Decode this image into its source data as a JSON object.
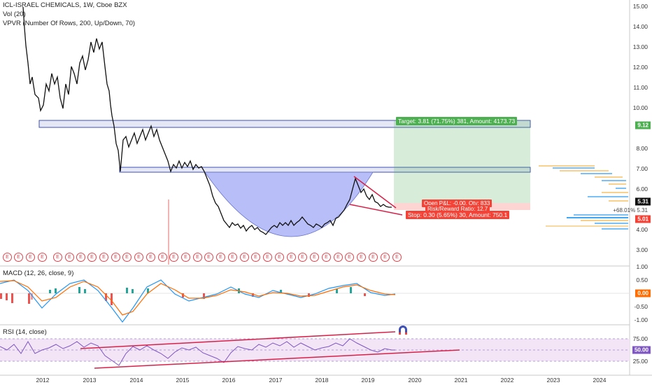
{
  "header": {
    "symbol_line": "ICL-ISRAEL CHEMICALS, 1W, Cboe BZX",
    "volume_line": "Vol (20)",
    "vpvr_line": "VPVR (Number Of Rows, 200, Up/Down, 70)",
    "macd_line": "MACD (12, 26, close, 9)",
    "rsi_line": "RSI (14, close)"
  },
  "price_axis": [
    "15.00",
    "14.00",
    "13.00",
    "12.00",
    "11.00",
    "10.00",
    "8.00",
    "7.00",
    "6.00",
    "4.00",
    "3.00"
  ],
  "macd_axis": [
    "1.00",
    "0.50",
    "0.00",
    "-0.50",
    "-1.00"
  ],
  "rsi_axis": [
    "75.00",
    "50.00",
    "25.00"
  ],
  "time_axis": [
    "2012",
    "2013",
    "2014",
    "2015",
    "2016",
    "2017",
    "2018",
    "2019",
    "2020",
    "2021",
    "2022",
    "2023",
    "2024"
  ],
  "badges": {
    "target_price": "9.12",
    "last_price": "5.31",
    "stop_price": "5.01",
    "pct_note": "+68.01%",
    "pct_price": "5.31",
    "macd_last": "0.00",
    "rsi_last": "50.00"
  },
  "position": {
    "target_label": "Target: 3.81 (71.75%) 381, Amount: 4173.73",
    "open_label": "Open P&L: -0.00, Qty: 833",
    "rr_label": "Risk/Reward Ratio: 12.7",
    "stop_label": "Stop: 0.30 (5.65%) 30, Amount: 750.1"
  },
  "earnings_marker": "E",
  "colors": {
    "up": "#26a69a",
    "down": "#ef5350",
    "zone": "#3f51b5",
    "cup_fill": "#9fa8f5",
    "profit": "#4caf50",
    "loss": "#f44336",
    "rsi_band": "#f3e5f5",
    "trendline": "#d6224a"
  }
}
